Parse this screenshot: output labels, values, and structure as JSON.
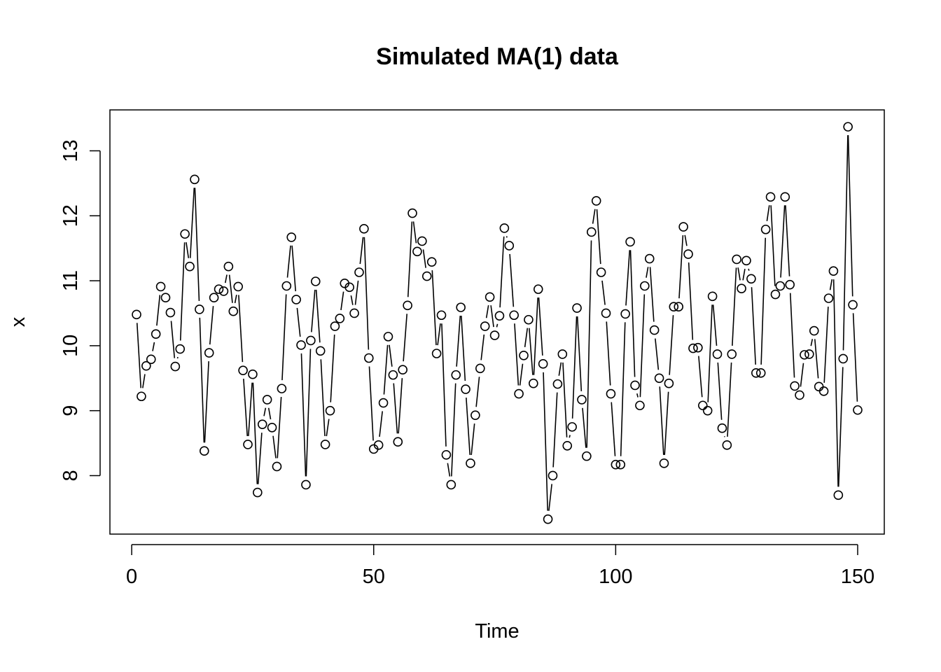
{
  "chart_data": {
    "type": "line",
    "title": "Simulated MA(1) data",
    "xlabel": "Time",
    "ylabel": "x",
    "xlim": [
      -4.5,
      155.5
    ],
    "ylim": [
      7.1,
      13.63
    ],
    "xticks": [
      0,
      50,
      100,
      150
    ],
    "yticks": [
      8,
      9,
      10,
      11,
      12,
      13
    ],
    "xtick_labels": [
      "0",
      "50",
      "100",
      "150"
    ],
    "ytick_labels": [
      "8",
      "9",
      "10",
      "11",
      "12",
      "13"
    ],
    "grid": false,
    "legend": "none",
    "plot_style": "both lines and points (type = \"b\")",
    "colors": {
      "line": "#000000",
      "points": "#000000",
      "background": "#ffffff"
    },
    "series": [
      {
        "x": [
          1,
          2,
          3,
          4,
          5,
          6,
          7,
          8,
          9,
          10,
          11,
          12,
          13,
          14,
          15,
          16,
          17,
          18,
          19,
          20,
          21,
          22,
          23,
          24,
          25,
          26,
          27,
          28,
          29,
          30,
          31,
          32,
          33,
          34,
          35,
          36,
          37,
          38,
          39,
          40,
          41,
          42,
          43,
          44,
          45,
          46,
          47,
          48,
          49,
          50,
          51,
          52,
          53,
          54,
          55,
          56,
          57,
          58,
          59,
          60,
          61,
          62,
          63,
          64,
          65,
          66,
          67,
          68,
          69,
          70,
          71,
          72,
          73,
          74,
          75,
          76,
          77,
          78,
          79,
          80,
          81,
          82,
          83,
          84,
          85,
          86,
          87,
          88,
          89,
          90,
          91,
          92,
          93,
          94,
          95,
          96,
          97,
          98,
          99,
          100,
          101,
          102,
          103,
          104,
          105,
          106,
          107,
          108,
          109,
          110,
          111,
          112,
          113,
          114,
          115,
          116,
          117,
          118,
          119,
          120,
          121,
          122,
          123,
          124,
          125,
          126,
          127,
          128,
          129,
          130,
          131,
          132,
          133,
          134,
          135,
          136,
          137,
          138,
          139,
          140,
          141,
          142,
          143,
          144,
          145,
          146,
          147,
          148,
          149,
          150
        ],
        "values": [
          10.48,
          9.22,
          9.69,
          9.79,
          10.18,
          10.91,
          10.74,
          10.51,
          9.68,
          9.95,
          11.72,
          11.22,
          12.56,
          10.56,
          8.38,
          9.89,
          10.74,
          10.87,
          10.84,
          11.22,
          10.53,
          10.91,
          9.62,
          8.48,
          9.56,
          7.74,
          8.79,
          9.17,
          8.74,
          8.14,
          9.34,
          10.92,
          11.67,
          10.71,
          10.01,
          7.86,
          10.08,
          10.99,
          9.92,
          8.48,
          9.0,
          10.3,
          10.42,
          10.96,
          10.9,
          10.5,
          11.13,
          11.8,
          9.81,
          8.41,
          8.47,
          9.12,
          10.14,
          9.55,
          8.52,
          9.63,
          10.62,
          12.04,
          11.45,
          11.61,
          11.07,
          11.29,
          9.88,
          10.47,
          8.32,
          7.86,
          9.55,
          10.59,
          9.33,
          8.19,
          8.93,
          9.65,
          10.3,
          10.75,
          10.16,
          10.46,
          11.81,
          11.54,
          10.47,
          9.26,
          9.85,
          10.4,
          9.42,
          10.87,
          9.72,
          7.33,
          8.0,
          9.41,
          9.87,
          8.46,
          8.75,
          10.58,
          9.17,
          8.3,
          11.75,
          12.23,
          11.13,
          10.5,
          9.26,
          8.17,
          8.17,
          10.49,
          11.6,
          9.39,
          9.08,
          10.92,
          11.34,
          10.24,
          9.5,
          8.19,
          9.42,
          10.6,
          10.6,
          11.83,
          11.41,
          9.96,
          9.97,
          9.08,
          9.0,
          10.76,
          9.87,
          8.73,
          8.47,
          9.87,
          11.33,
          10.88,
          11.31,
          11.03,
          9.58,
          9.58,
          11.79,
          12.29,
          10.79,
          10.92,
          12.29,
          10.94,
          9.38,
          9.24,
          9.86,
          9.87,
          10.23,
          9.37,
          9.3,
          10.73,
          11.15,
          7.7,
          9.8,
          13.37,
          10.63,
          9.01
        ]
      }
    ]
  }
}
